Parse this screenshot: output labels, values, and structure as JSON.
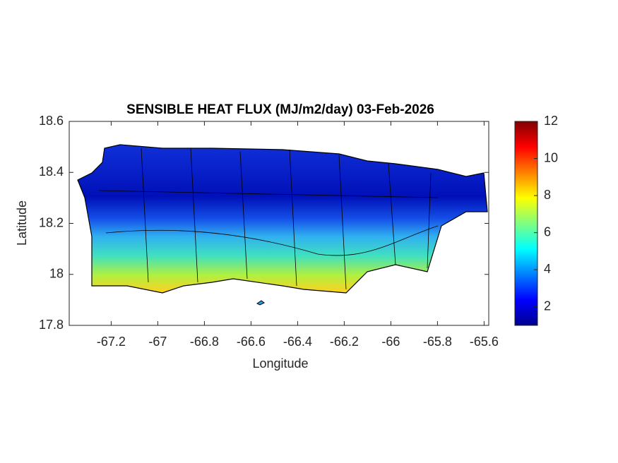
{
  "chart_data": {
    "type": "map",
    "title": "SENSIBLE HEAT FLUX (MJ/m2/day) 03-Feb-2026",
    "x_label": "Longitude",
    "y_label": "Latitude",
    "xlim": [
      -67.38,
      -65.58
    ],
    "xticks": [
      -67.2,
      -67,
      -66.8,
      -66.6,
      -66.4,
      -66.2,
      -66,
      -65.8,
      -65.6
    ],
    "ylim": [
      17.8,
      18.6
    ],
    "yticks": [
      17.8,
      18,
      18.2,
      18.4,
      18.6
    ],
    "colormap": "jet",
    "clim": [
      1,
      12
    ],
    "cticks": [
      2,
      4,
      6,
      8,
      10,
      12
    ]
  }
}
